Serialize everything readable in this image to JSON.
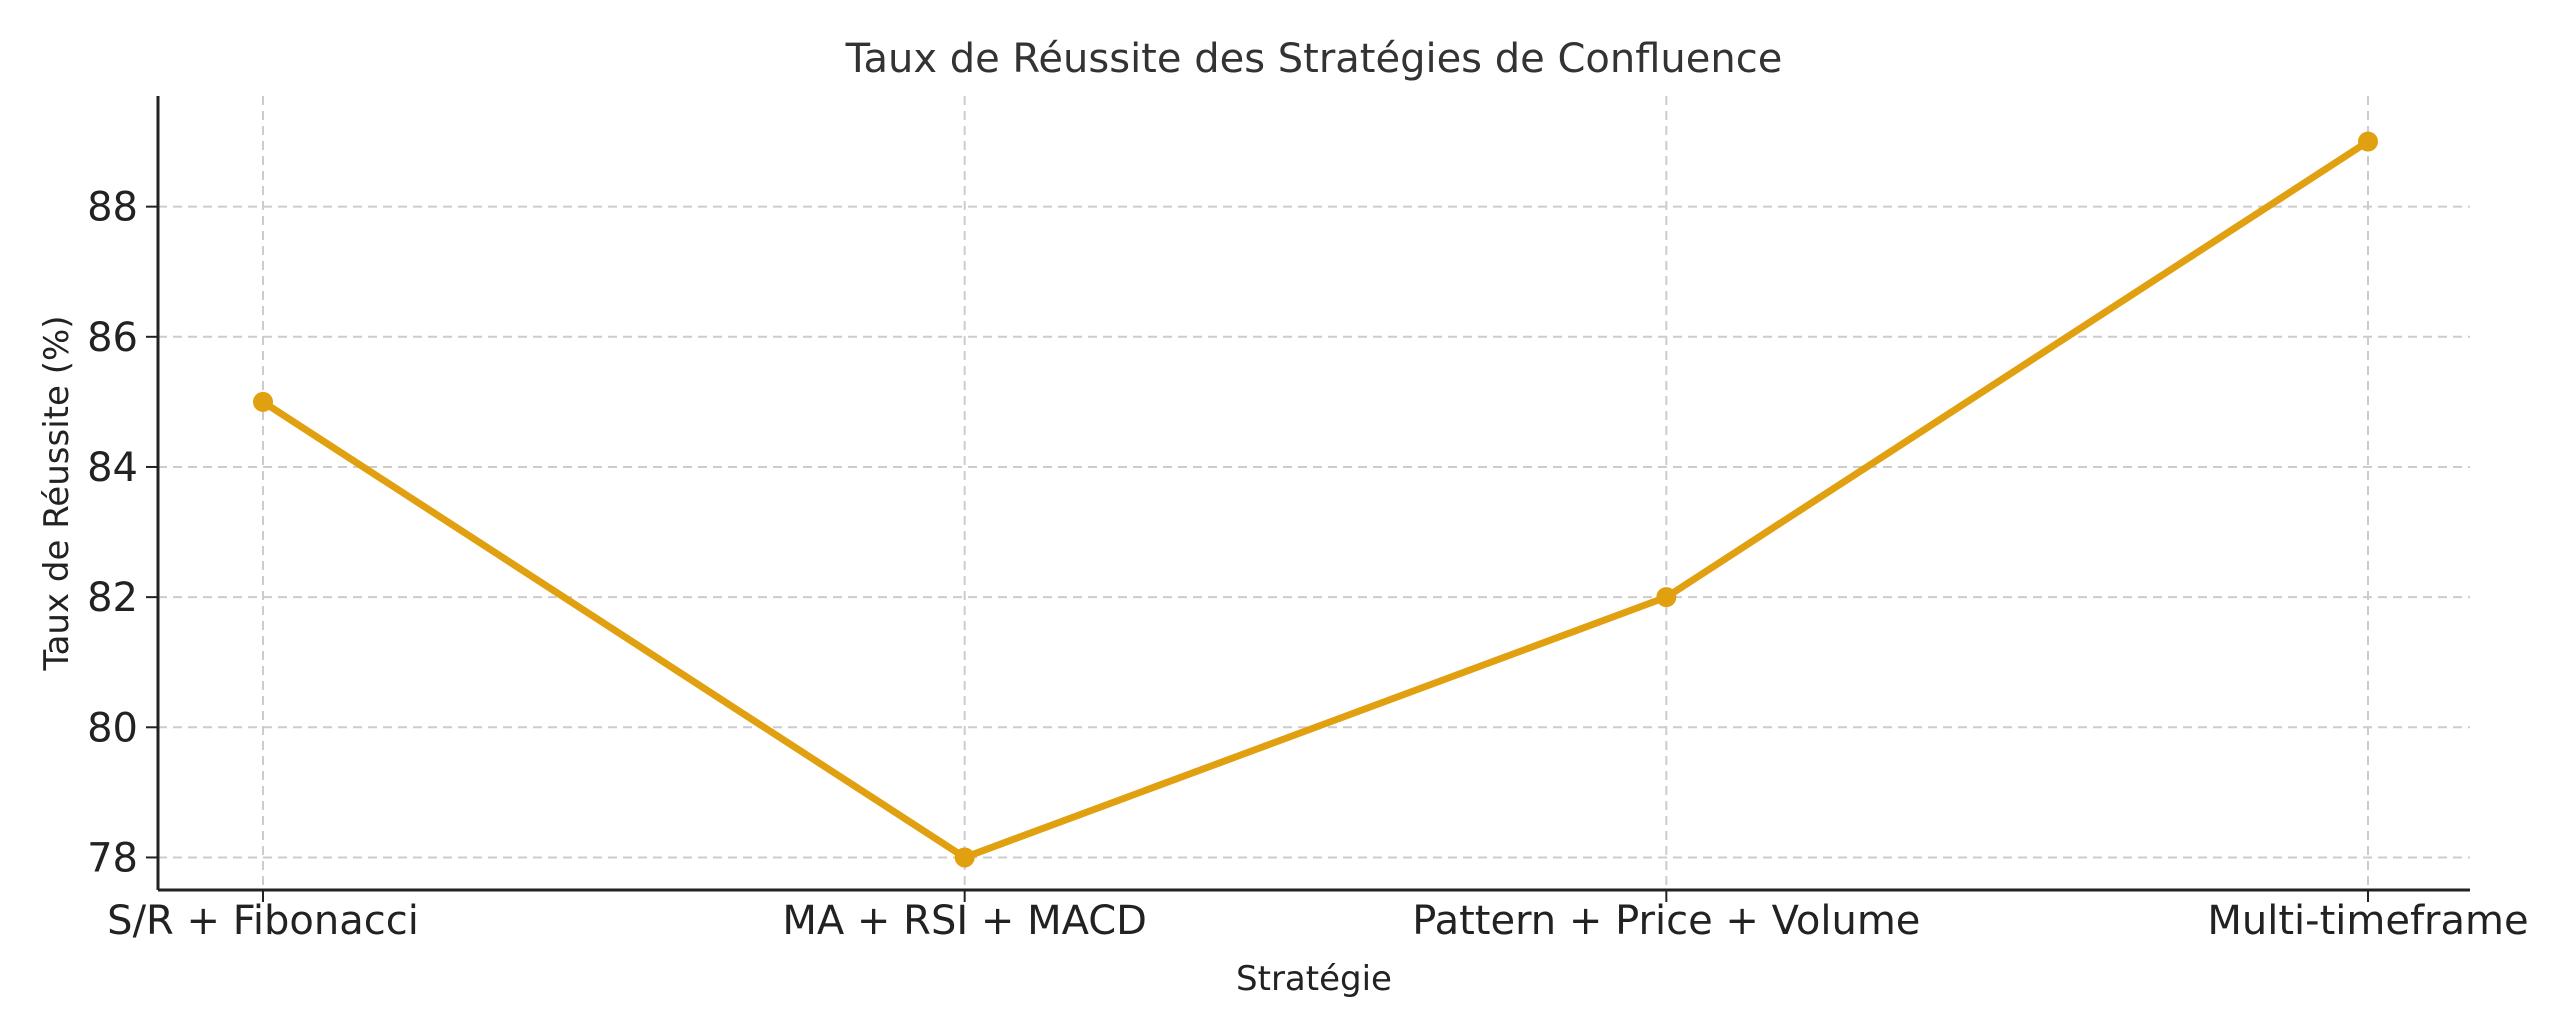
{
  "chart_data": {
    "type": "line",
    "title": "Taux de Réussite des Stratégies de Confluence",
    "xlabel": "Stratégie",
    "ylabel": "Taux de Réussite (%)",
    "categories": [
      "S/R + Fibonacci",
      "MA + RSI + MACD",
      "Pattern + Price + Volume",
      "Multi-timeframe"
    ],
    "series": [
      {
        "values": [
          85,
          78,
          82,
          89
        ],
        "color": "#e1a00f",
        "marker": "circle"
      }
    ],
    "ylim": [
      77.5,
      89.7
    ],
    "yticks": [
      78,
      80,
      82,
      84,
      86,
      88
    ],
    "grid": true
  }
}
